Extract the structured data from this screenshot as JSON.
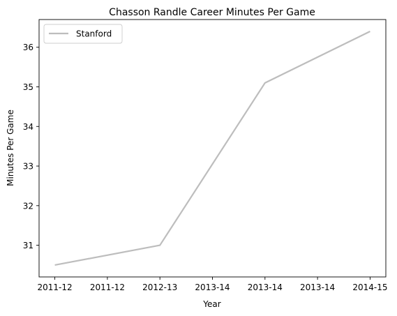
{
  "chart_data": {
    "type": "line",
    "title": "Chasson Randle Career Minutes Per Game",
    "xlabel": "Year",
    "ylabel": "Minutes Per Game",
    "x_tick_labels": [
      "2011-12",
      "2011-12",
      "2012-13",
      "2013-14",
      "2013-14",
      "2013-14",
      "2014-15"
    ],
    "x_tick_positions": [
      0,
      0.5,
      1,
      1.5,
      2,
      2.5,
      3
    ],
    "xlim": [
      -0.15,
      3.15
    ],
    "yticks": [
      31,
      32,
      33,
      34,
      35,
      36
    ],
    "ylim": [
      30.2,
      36.7
    ],
    "grid": false,
    "legend_position": "upper-left",
    "series": [
      {
        "name": "Stanford",
        "color": "#bdbdbd",
        "x": [
          0,
          1,
          2,
          3
        ],
        "values": [
          30.5,
          31.0,
          35.1,
          36.4
        ]
      }
    ]
  }
}
